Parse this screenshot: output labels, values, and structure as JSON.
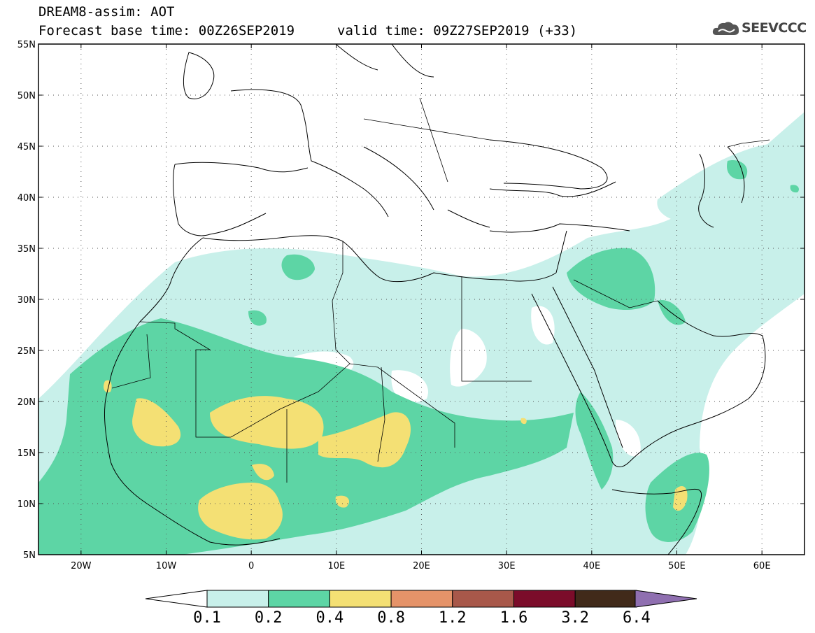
{
  "header": {
    "title": "DREAM8-assim: AOT",
    "base_time": "Forecast base time: 00Z26SEP2019",
    "valid_time": "valid time: 09Z27SEP2019 (+33)",
    "logo_text": "SEEVCCC"
  },
  "map": {
    "lon_range": [
      -25,
      65
    ],
    "lat_range": [
      5,
      55
    ],
    "lat_labels": [
      "55N",
      "50N",
      "45N",
      "40N",
      "35N",
      "30N",
      "25N",
      "20N",
      "15N",
      "10N",
      "5N"
    ],
    "lon_labels": [
      "20W",
      "10W",
      "0",
      "10E",
      "20E",
      "30E",
      "40E",
      "50E",
      "60E"
    ],
    "grid": "dotted",
    "coastline_color": "#000000"
  },
  "legend": {
    "colors": [
      "#c8f0ea",
      "#5dd5a5",
      "#f4e074",
      "#e59369",
      "#a8584a",
      "#7b0c2a",
      "#412a1a",
      "#8f6fb0"
    ],
    "labels": [
      "0.1",
      "0.2",
      "0.4",
      "0.8",
      "1.2",
      "1.6",
      "3.2",
      "6.4"
    ]
  }
}
